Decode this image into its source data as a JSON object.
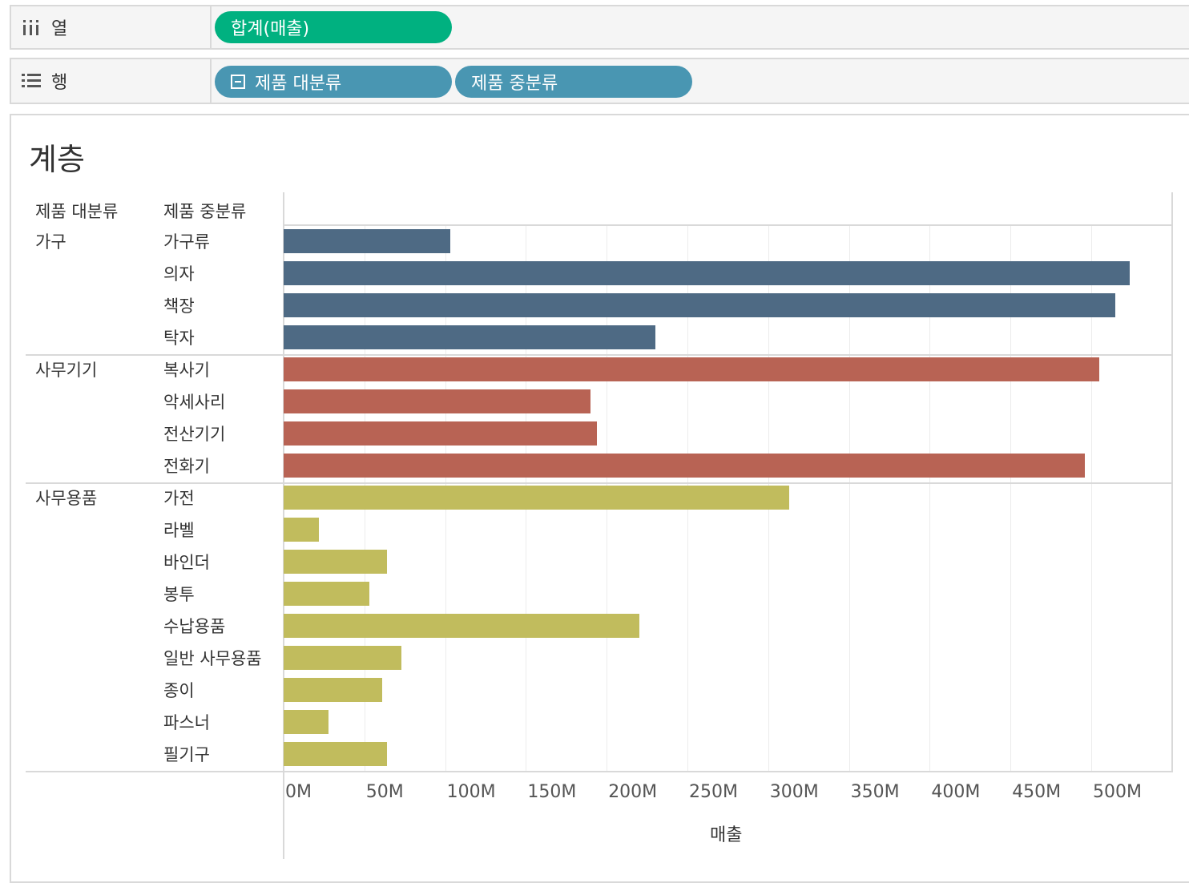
{
  "shelves": {
    "columns": {
      "label": "열",
      "icon": "columns-icon",
      "pills": [
        {
          "text": "합계(매출)"
        }
      ]
    },
    "rows": {
      "label": "행",
      "icon": "rows-icon",
      "pills": [
        {
          "text": "제품 대분류"
        },
        {
          "text": "제품 중분류"
        }
      ]
    }
  },
  "sheet": {
    "title": "계층"
  },
  "chart_data": {
    "type": "bar",
    "orientation": "horizontal",
    "row_headers": [
      "제품 대분류",
      "제품 중분류"
    ],
    "xlabel": "매출",
    "xlim": [
      0,
      550
    ],
    "ticks": [
      "0M",
      "50M",
      "100M",
      "150M",
      "200M",
      "250M",
      "300M",
      "350M",
      "400M",
      "450M",
      "500M"
    ],
    "grid": true,
    "groups": [
      {
        "name": "가구",
        "color": "#4e6a84",
        "items": [
          {
            "label": "가구류",
            "value": 103
          },
          {
            "label": "의자",
            "value": 524
          },
          {
            "label": "책장",
            "value": 515
          },
          {
            "label": "탁자",
            "value": 230
          }
        ]
      },
      {
        "name": "사무기기",
        "color": "#b86354",
        "items": [
          {
            "label": "복사기",
            "value": 505
          },
          {
            "label": "악세사리",
            "value": 190
          },
          {
            "label": "전산기기",
            "value": 194
          },
          {
            "label": "전화기",
            "value": 496
          }
        ]
      },
      {
        "name": "사무용품",
        "color": "#c1bc5d",
        "items": [
          {
            "label": "가전",
            "value": 313
          },
          {
            "label": "라벨",
            "value": 22
          },
          {
            "label": "바인더",
            "value": 64
          },
          {
            "label": "봉투",
            "value": 53
          },
          {
            "label": "수납용품",
            "value": 220
          },
          {
            "label": "일반 사무용품",
            "value": 73
          },
          {
            "label": "종이",
            "value": 61
          },
          {
            "label": "파스너",
            "value": 28
          },
          {
            "label": "필기구",
            "value": 64
          }
        ]
      }
    ]
  }
}
